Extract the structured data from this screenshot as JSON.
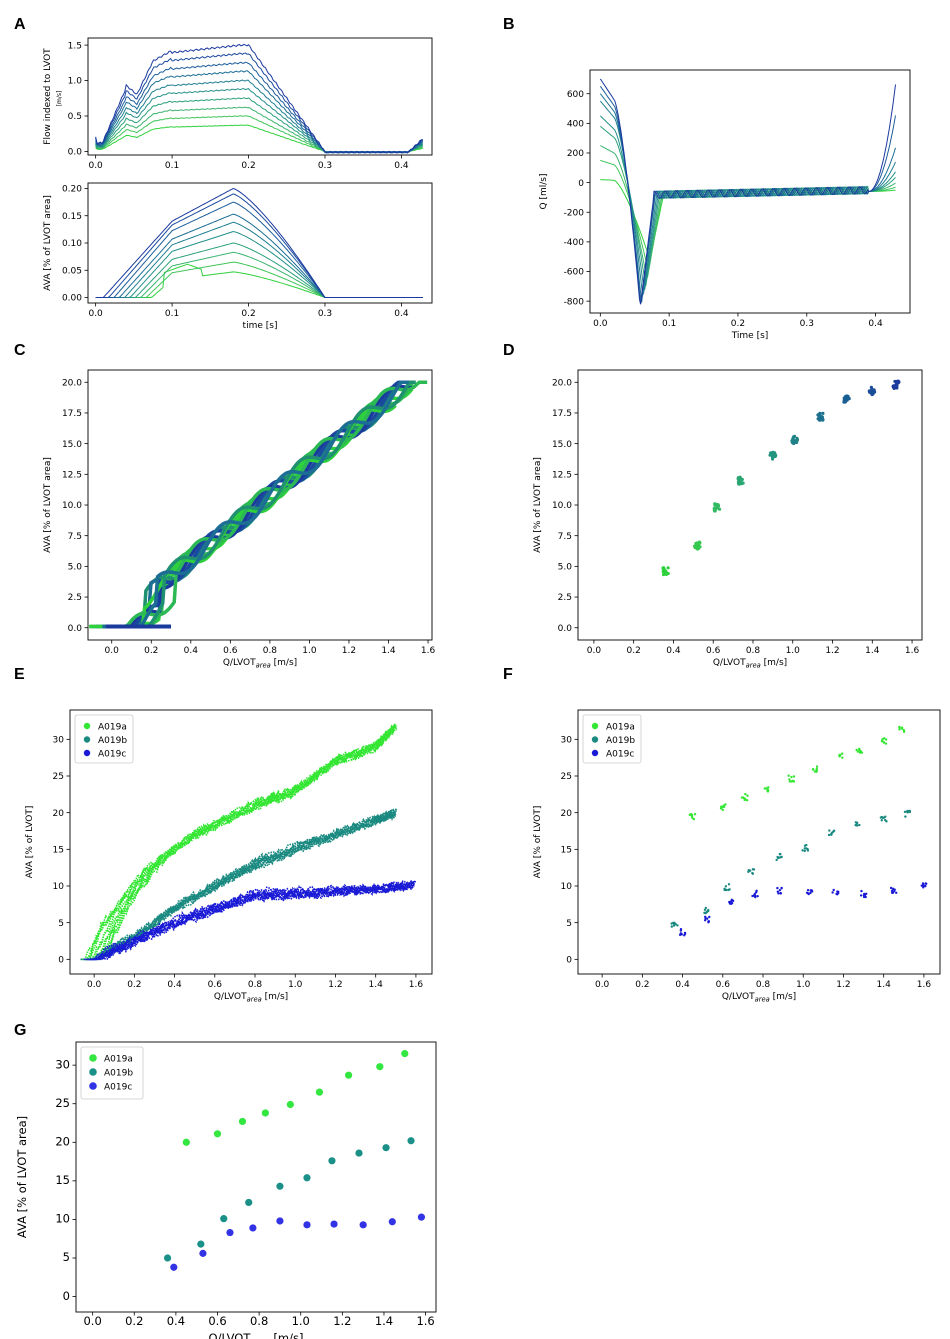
{
  "panel_letters": {
    "A": "A",
    "B": "B",
    "C": "C",
    "D": "D",
    "E": "E",
    "F": "F",
    "G": "G"
  },
  "chart_data": [
    {
      "id": "A_top",
      "type": "line",
      "ylabel": "Flow indexed to LVOT",
      "ylabel_unit": "[m/s]",
      "xlim": [
        -0.01,
        0.44
      ],
      "ylim": [
        -0.05,
        1.6
      ],
      "xticks": [
        0.0,
        0.1,
        0.2,
        0.3,
        0.4
      ],
      "yticks": [
        0.0,
        0.5,
        1.0,
        1.5
      ],
      "plateau_levels": [
        0.37,
        0.5,
        0.62,
        0.75,
        0.88,
        1.0,
        1.13,
        1.25,
        1.38,
        1.5
      ],
      "colors": [
        "#2ed13c",
        "#3fc45a",
        "#3bb46e",
        "#2aa07c",
        "#23908a",
        "#1f7f90",
        "#1c6e95",
        "#1c5c9b",
        "#1b4a9e",
        "#1a389f"
      ]
    },
    {
      "id": "A_bottom",
      "type": "line",
      "ylabel": "AVA [% of LVOT area]",
      "xlabel": "time [s]",
      "xlim": [
        -0.01,
        0.44
      ],
      "ylim": [
        -0.01,
        0.21
      ],
      "xticks": [
        0.0,
        0.1,
        0.2,
        0.3,
        0.4
      ],
      "yticks": [
        0.0,
        0.05,
        0.1,
        0.15,
        0.2
      ],
      "ytick_labels": [
        "0.00",
        "0.05",
        "0.10",
        "0.15",
        "0.20"
      ],
      "plateau_levels": [
        0.047,
        0.065,
        0.083,
        0.1,
        0.121,
        0.138,
        0.153,
        0.175,
        0.19,
        0.2
      ],
      "colors": [
        "#2ed13c",
        "#3fc45a",
        "#3bb46e",
        "#2aa07c",
        "#23908a",
        "#1f7f90",
        "#1c6e95",
        "#1c5c9b",
        "#1b4a9e",
        "#1a389f"
      ]
    },
    {
      "id": "B",
      "type": "line",
      "ylabel": "Q [ml/s]",
      "xlabel": "Time [s]",
      "xlim": [
        -0.015,
        0.45
      ],
      "ylim": [
        -880,
        760
      ],
      "xticks": [
        0.0,
        0.1,
        0.2,
        0.3,
        0.4
      ],
      "yticks": [
        -800,
        -600,
        -400,
        -200,
        0,
        200,
        400,
        600
      ],
      "start_values": [
        20,
        150,
        250,
        380,
        450,
        550,
        600,
        650,
        700
      ],
      "min_values": [
        -520,
        -600,
        -660,
        -700,
        -740,
        -780,
        -810,
        -830,
        -840
      ],
      "min_times": [
        0.072,
        0.07,
        0.068,
        0.066,
        0.064,
        0.062,
        0.06,
        0.059,
        0.058
      ],
      "end_values": [
        -50,
        -30,
        0,
        40,
        80,
        150,
        250,
        480,
        700
      ],
      "colors": [
        "#2ed13c",
        "#3fc45a",
        "#3bb46e",
        "#2aa07c",
        "#23908a",
        "#1f7f90",
        "#1c6e95",
        "#1c5c9b",
        "#1a389f"
      ]
    },
    {
      "id": "C",
      "type": "scatter",
      "ylabel": "AVA [% of LVOT area]",
      "xlabel": "Q/LVOT",
      "xlabel_sub": "area",
      "xlabel_unit": " [m/s]",
      "xlim": [
        -0.12,
        1.62
      ],
      "ylim": [
        -1.0,
        21.0
      ],
      "xticks": [
        0.0,
        0.2,
        0.4,
        0.6,
        0.8,
        1.0,
        1.2,
        1.4,
        1.6
      ],
      "yticks": [
        0.0,
        2.5,
        5.0,
        7.5,
        10.0,
        12.5,
        15.0,
        17.5,
        20.0
      ],
      "points": [
        [
          -0.03,
          0.1
        ],
        [
          0.3,
          0.1
        ],
        [
          0.38,
          3
        ],
        [
          0.5,
          5
        ],
        [
          0.7,
          9
        ],
        [
          1.1,
          13
        ],
        [
          1.3,
          17
        ],
        [
          1.52,
          19.8
        ]
      ]
    },
    {
      "id": "D",
      "type": "scatter",
      "ylabel": "AVA [% of LVOT area]",
      "xlabel": "Q/LVOT",
      "xlabel_sub": "area",
      "xlabel_unit": " [m/s]",
      "xlim": [
        -0.08,
        1.65
      ],
      "ylim": [
        -1.0,
        21.0
      ],
      "xticks": [
        0.0,
        0.2,
        0.4,
        0.6,
        0.8,
        1.0,
        1.2,
        1.4,
        1.6
      ],
      "yticks": [
        0.0,
        2.5,
        5.0,
        7.5,
        10.0,
        12.5,
        15.0,
        17.5,
        20.0
      ],
      "clusters": [
        [
          0.36,
          4.6
        ],
        [
          0.52,
          6.7
        ],
        [
          0.62,
          9.8
        ],
        [
          0.74,
          12.0
        ],
        [
          0.9,
          14.0
        ],
        [
          1.01,
          15.3
        ],
        [
          1.14,
          17.2
        ],
        [
          1.27,
          18.6
        ],
        [
          1.4,
          19.3
        ],
        [
          1.52,
          19.8
        ]
      ],
      "colors": [
        "#2ed13c",
        "#36c850",
        "#33bb62",
        "#2aa772",
        "#22957e",
        "#1f8287",
        "#1b708e",
        "#1a5f93",
        "#1a4e98",
        "#1a3a9c"
      ]
    },
    {
      "id": "E",
      "type": "scatter",
      "ylabel": "AVA [% of LVOT]",
      "xlabel": "Q/LVOT",
      "xlabel_sub": "area",
      "xlabel_unit": " [m/s]",
      "xlim": [
        -0.12,
        1.68
      ],
      "ylim": [
        -2,
        34
      ],
      "xticks": [
        0.0,
        0.2,
        0.4,
        0.6,
        0.8,
        1.0,
        1.2,
        1.4,
        1.6
      ],
      "yticks": [
        0,
        5,
        10,
        15,
        20,
        25,
        30
      ],
      "legend": [
        "A019a",
        "A019b",
        "A019c"
      ],
      "series_colors": [
        "#33e633",
        "#1a8a80",
        "#1a1ad6"
      ],
      "series_shapes": [
        [
          [
            0,
            0
          ],
          [
            0.1,
            6
          ],
          [
            0.3,
            13
          ],
          [
            0.5,
            17
          ],
          [
            0.8,
            21
          ],
          [
            1.0,
            23
          ],
          [
            1.2,
            27
          ],
          [
            1.4,
            29
          ],
          [
            1.5,
            31.8
          ]
        ],
        [
          [
            0,
            0
          ],
          [
            0.2,
            3
          ],
          [
            0.4,
            7
          ],
          [
            0.6,
            10
          ],
          [
            0.8,
            13
          ],
          [
            1.0,
            15
          ],
          [
            1.2,
            17
          ],
          [
            1.4,
            19
          ],
          [
            1.5,
            20
          ]
        ],
        [
          [
            0,
            0
          ],
          [
            0.2,
            2.5
          ],
          [
            0.4,
            5
          ],
          [
            0.6,
            7
          ],
          [
            0.8,
            8.8
          ],
          [
            1.0,
            9
          ],
          [
            1.2,
            9.3
          ],
          [
            1.4,
            9.6
          ],
          [
            1.6,
            10.2
          ]
        ]
      ]
    },
    {
      "id": "F",
      "type": "scatter",
      "ylabel": "AVA [% of LVOT]",
      "xlabel": "Q/LVOT",
      "xlabel_sub": "area",
      "xlabel_unit": " [m/s]",
      "xlim": [
        -0.12,
        1.68
      ],
      "ylim": [
        -2,
        34
      ],
      "xticks": [
        0.0,
        0.2,
        0.4,
        0.6,
        0.8,
        1.0,
        1.2,
        1.4,
        1.6
      ],
      "yticks": [
        0,
        5,
        10,
        15,
        20,
        25,
        30
      ],
      "legend": [
        "A019a",
        "A019b",
        "A019c"
      ],
      "series_colors": [
        "#33e633",
        "#1a8a80",
        "#1a1ad6"
      ],
      "series_points": [
        [
          [
            0.45,
            19.5
          ],
          [
            0.6,
            20.8
          ],
          [
            0.71,
            22.1
          ],
          [
            0.82,
            23.2
          ],
          [
            0.94,
            24.6
          ],
          [
            1.06,
            26.0
          ],
          [
            1.19,
            27.9
          ],
          [
            1.28,
            28.3
          ],
          [
            1.4,
            29.7
          ],
          [
            1.49,
            31.3
          ]
        ],
        [
          [
            0.36,
            4.6
          ],
          [
            0.52,
            6.7
          ],
          [
            0.62,
            9.8
          ],
          [
            0.74,
            12.0
          ],
          [
            0.88,
            14.0
          ],
          [
            1.01,
            15.2
          ],
          [
            1.14,
            17.2
          ],
          [
            1.27,
            18.5
          ],
          [
            1.4,
            19.2
          ],
          [
            1.52,
            19.8
          ]
        ],
        [
          [
            0.4,
            3.7
          ],
          [
            0.52,
            5.4
          ],
          [
            0.64,
            8.0
          ],
          [
            0.76,
            8.9
          ],
          [
            0.88,
            9.4
          ],
          [
            1.03,
            9.1
          ],
          [
            1.16,
            9.1
          ],
          [
            1.3,
            8.9
          ],
          [
            1.45,
            9.4
          ],
          [
            1.6,
            10.2
          ]
        ]
      ]
    },
    {
      "id": "G",
      "type": "scatter",
      "ylabel": "AVA [% of LVOT area]",
      "xlabel": "Q/LVOT",
      "xlabel_sub": "area",
      "xlabel_unit": " [m/s]",
      "xlim": [
        -0.08,
        1.65
      ],
      "ylim": [
        -2,
        33
      ],
      "xticks": [
        0.0,
        0.2,
        0.4,
        0.6,
        0.8,
        1.0,
        1.2,
        1.4,
        1.6
      ],
      "yticks": [
        0,
        5,
        10,
        15,
        20,
        25,
        30
      ],
      "legend": [
        "A019a",
        "A019b",
        "A019c"
      ],
      "series_colors": [
        "#33e640",
        "#1a9088",
        "#3333e6"
      ],
      "series_points": [
        [
          [
            0.45,
            20.0
          ],
          [
            0.6,
            21.1
          ],
          [
            0.72,
            22.7
          ],
          [
            0.83,
            23.8
          ],
          [
            0.95,
            24.9
          ],
          [
            1.09,
            26.5
          ],
          [
            1.23,
            28.7
          ],
          [
            1.38,
            29.8
          ],
          [
            1.5,
            31.5
          ]
        ],
        [
          [
            0.36,
            5.0
          ],
          [
            0.52,
            6.8
          ],
          [
            0.63,
            10.1
          ],
          [
            0.75,
            12.2
          ],
          [
            0.9,
            14.3
          ],
          [
            1.03,
            15.4
          ],
          [
            1.15,
            17.6
          ],
          [
            1.28,
            18.6
          ],
          [
            1.41,
            19.3
          ],
          [
            1.53,
            20.2
          ]
        ],
        [
          [
            0.39,
            3.8
          ],
          [
            0.53,
            5.6
          ],
          [
            0.66,
            8.3
          ],
          [
            0.77,
            8.9
          ],
          [
            0.9,
            9.8
          ],
          [
            1.03,
            9.3
          ],
          [
            1.16,
            9.4
          ],
          [
            1.3,
            9.3
          ],
          [
            1.44,
            9.7
          ],
          [
            1.58,
            10.3
          ]
        ]
      ]
    }
  ]
}
